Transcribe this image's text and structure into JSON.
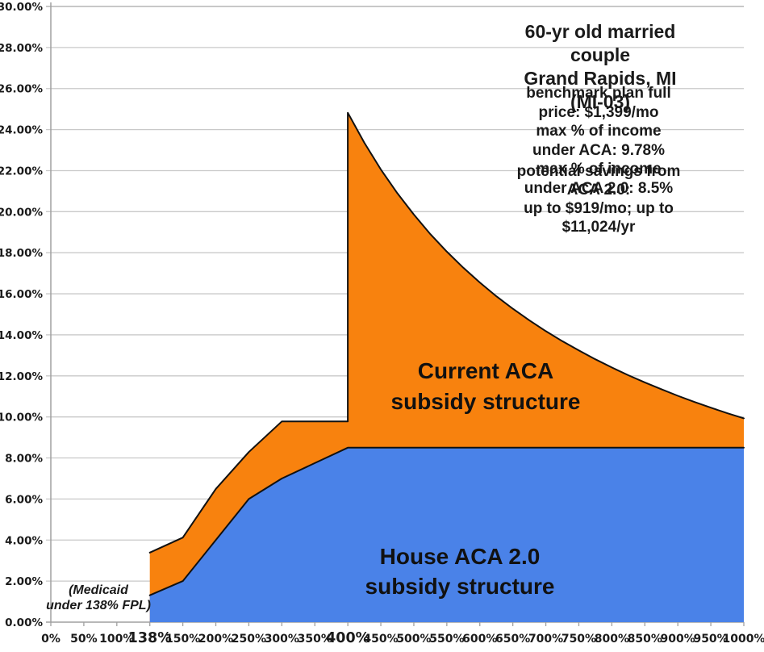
{
  "title": {
    "text": "60-yr old married couple\nGrand Rapids, MI (MI-03)"
  },
  "info": {
    "text": "benchmark plan full price: $1,399/mo\nmax % of income under ACA: 9.78%\nmax % of income under ACA 2.0: 8.5%"
  },
  "savings": {
    "text": "potential savings from ACA 2.0:\nup to $919/mo; up to $11,024/yr"
  },
  "labels": {
    "current_aca": "Current ACA\nsubsidy structure",
    "house_aca": "House ACA 2.0\nsubsidy structure",
    "medicaid_note": "(Medicaid\nunder 138% FPL)"
  },
  "colors": {
    "current_aca_fill": "#F8820E",
    "house_aca_fill": "#4A82E8",
    "line_stroke": "#111111",
    "gridline": "#c9c9c9",
    "gridline_top": "#a8a8a8",
    "axis": "#a0a0a0",
    "text": "#1a1a1a"
  },
  "chart_data": {
    "type": "area",
    "mode": "overlaid",
    "grid": "horizontal-only",
    "legend_position": "none (labels drawn on areas)",
    "x_axis": {
      "label": "",
      "values": [
        0,
        50,
        100,
        138,
        150,
        200,
        250,
        300,
        350,
        400,
        450,
        500,
        550,
        600,
        650,
        700,
        750,
        800,
        850,
        900,
        950,
        1000
      ],
      "ticks": [
        "0%",
        "50%",
        "100%",
        "138%",
        "150%",
        "200%",
        "250%",
        "300%",
        "350%",
        "400%",
        "450%",
        "500%",
        "550%",
        "600%",
        "650%",
        "700%",
        "750%",
        "800%",
        "850%",
        "900%",
        "950%",
        "1000%"
      ],
      "emphasized_ticks": [
        "138%",
        "400%"
      ],
      "spacing": "categorical-even"
    },
    "y_axis": {
      "label": "",
      "min": 0,
      "max": 30,
      "step": 2,
      "tick_labels": [
        "0.00%",
        "2.00%",
        "4.00%",
        "6.00%",
        "8.00%",
        "10.00%",
        "12.00%",
        "14.00%",
        "16.00%",
        "18.00%",
        "20.00%",
        "22.00%",
        "24.00%",
        "26.00%",
        "28.00%",
        "30.00%"
      ]
    },
    "series": [
      {
        "name": "Current ACA subsidy structure",
        "color_key": "current_aca_fill",
        "points": [
          [
            138,
            3.39
          ],
          [
            150,
            4.12
          ],
          [
            200,
            6.49
          ],
          [
            250,
            8.29
          ],
          [
            300,
            9.78
          ],
          [
            400,
            9.78
          ],
          [
            400,
            24.82
          ],
          [
            425,
            23.36
          ],
          [
            450,
            22.06
          ],
          [
            475,
            20.9
          ],
          [
            500,
            19.86
          ],
          [
            525,
            18.91
          ],
          [
            550,
            18.05
          ],
          [
            575,
            17.27
          ],
          [
            600,
            16.55
          ],
          [
            625,
            15.88
          ],
          [
            650,
            15.27
          ],
          [
            675,
            14.71
          ],
          [
            700,
            14.18
          ],
          [
            725,
            13.69
          ],
          [
            750,
            13.24
          ],
          [
            775,
            12.81
          ],
          [
            800,
            12.41
          ],
          [
            825,
            12.03
          ],
          [
            850,
            11.68
          ],
          [
            875,
            11.35
          ],
          [
            900,
            11.03
          ],
          [
            925,
            10.73
          ],
          [
            950,
            10.45
          ],
          [
            975,
            10.18
          ],
          [
            1000,
            9.93
          ]
        ]
      },
      {
        "name": "House ACA 2.0 subsidy structure",
        "color_key": "house_aca_fill",
        "points": [
          [
            138,
            1.31
          ],
          [
            150,
            2
          ],
          [
            200,
            4
          ],
          [
            250,
            6
          ],
          [
            300,
            7
          ],
          [
            350,
            7.75
          ],
          [
            400,
            8.5
          ],
          [
            1000,
            8.5
          ]
        ]
      }
    ]
  }
}
